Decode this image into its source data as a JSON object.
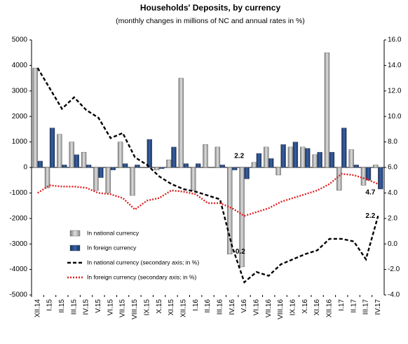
{
  "chart_data": {
    "type": "bar_line",
    "title": "Households' Deposits, by currency",
    "subtitle": "(monthly changes in millions of NC and annual rates in %)",
    "categories": [
      "XII.14",
      "I.15",
      "II.15",
      "III.15",
      "IV.15",
      "V.15",
      "VI.15",
      "VII.15",
      "VIII.15",
      "IX.15",
      "X.15",
      "XI.15",
      "XII.15",
      "I.16",
      "II.16",
      "III.16",
      "IV.16",
      "V.16",
      "VI.16",
      "VII.16",
      "VIII.16",
      "IX.16",
      "X.16",
      "XI.16",
      "XII.16",
      "I.17",
      "II.17",
      "III.17",
      "IV.17"
    ],
    "series": [
      {
        "name": "In national currency",
        "kind": "bar",
        "color": "#a6a6a6",
        "values": [
          3900,
          -800,
          1300,
          1000,
          600,
          -900,
          -1000,
          1000,
          -1100,
          0,
          -100,
          300,
          3500,
          -900,
          900,
          800,
          -3400,
          -3900,
          200,
          800,
          -300,
          800,
          800,
          500,
          4500,
          -900,
          700,
          -700,
          100
        ]
      },
      {
        "name": "In foreign currency",
        "kind": "bar",
        "color": "#1f3f7a",
        "values": [
          250,
          1550,
          100,
          500,
          100,
          -400,
          -100,
          150,
          100,
          1100,
          -50,
          800,
          150,
          150,
          0,
          100,
          -100,
          -450,
          550,
          350,
          900,
          1000,
          750,
          600,
          600,
          1550,
          100,
          -500,
          -850
        ]
      },
      {
        "name": "In national currency (secondary axis; in %)",
        "kind": "line",
        "axis": "y2",
        "color": "#000000",
        "dash": "5,3",
        "values": [
          13.8,
          12.2,
          10.6,
          11.5,
          10.5,
          9.9,
          8.3,
          8.7,
          6.8,
          6.2,
          5.3,
          4.7,
          4.3,
          4.1,
          3.8,
          3.5,
          -0.2,
          -3.0,
          -2.2,
          -2.5,
          -1.6,
          -1.2,
          -0.8,
          -0.5,
          0.4,
          0.4,
          0.2,
          -1.2,
          2.2
        ]
      },
      {
        "name": "In foreign currency (secondary axis; in %)",
        "kind": "line",
        "axis": "y2",
        "color": "#e02020",
        "dash": "2,2",
        "values": [
          4.0,
          4.6,
          4.5,
          4.5,
          4.4,
          4.0,
          3.9,
          3.6,
          2.7,
          3.4,
          3.6,
          4.2,
          4.1,
          3.9,
          3.2,
          3.2,
          2.8,
          2.2,
          2.5,
          2.8,
          3.3,
          3.6,
          3.9,
          4.2,
          4.7,
          5.5,
          5.4,
          5.1,
          4.7
        ]
      }
    ],
    "annotations": [
      "2.2",
      "-0.2"
    ],
    "ylim": [
      -5000,
      5000
    ],
    "yticks": [
      -5000,
      -4000,
      -3000,
      -2000,
      -1000,
      0,
      1000,
      2000,
      3000,
      4000,
      5000
    ],
    "y2lim": [
      -4,
      16
    ],
    "y2ticks": [
      {
        "value": -4,
        "label": "-4.0"
      },
      {
        "value": -2,
        "label": "-2.0"
      },
      {
        "value": 0,
        "label": "0.0"
      },
      {
        "value": 2,
        "label": "2.0"
      },
      {
        "value": 4,
        "label": "4.0"
      },
      {
        "value": 6,
        "label": "6.0"
      },
      {
        "value": 8,
        "label": "8.0"
      },
      {
        "value": 10,
        "label": "10.0"
      },
      {
        "value": 12,
        "label": "12.0"
      },
      {
        "value": 14,
        "label": "14.0"
      },
      {
        "value": 16,
        "label": "16.0"
      }
    ],
    "legend": "lower left"
  }
}
